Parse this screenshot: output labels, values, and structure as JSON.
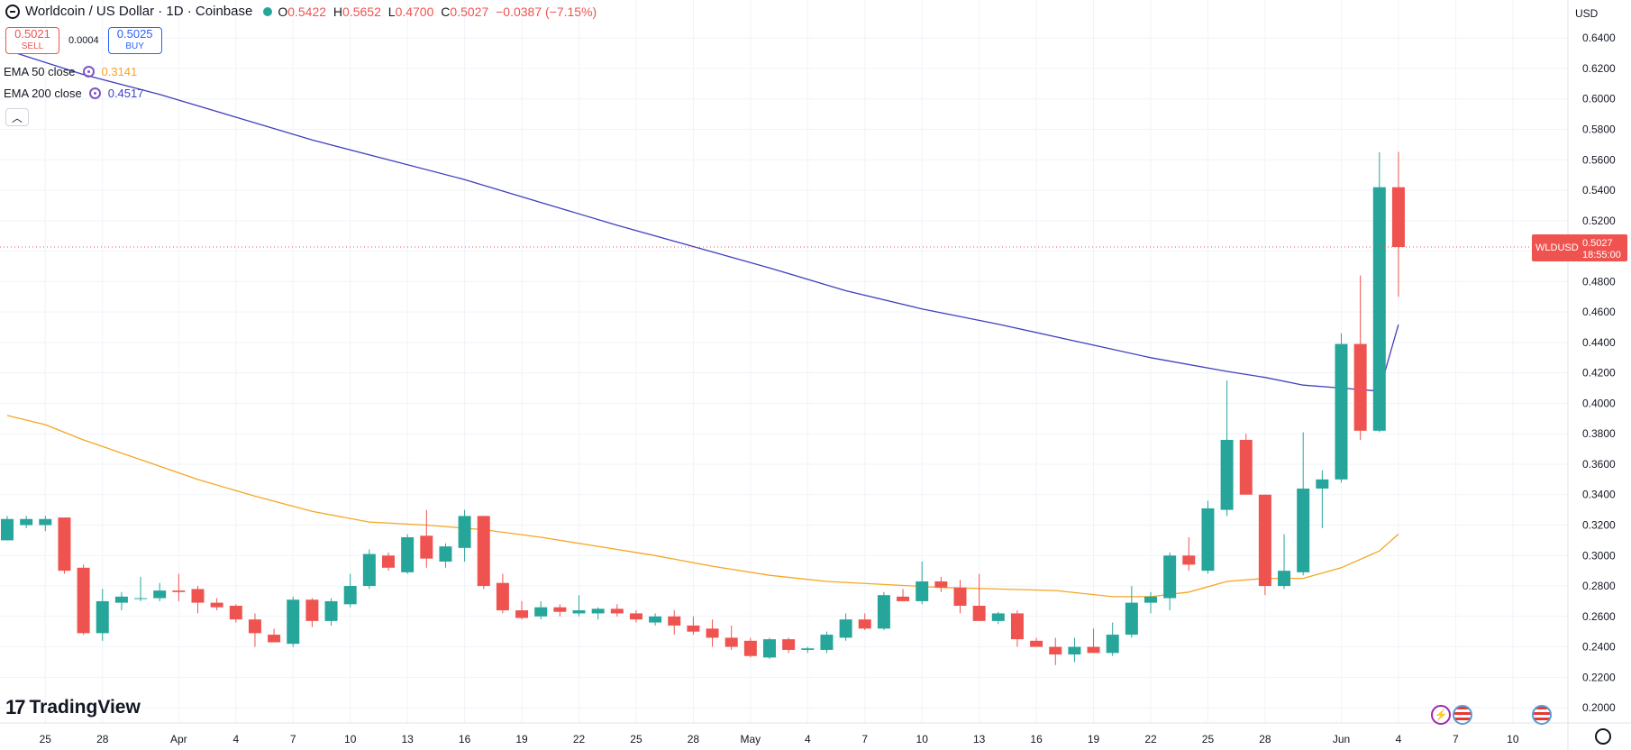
{
  "header": {
    "title": "Worldcoin / US Dollar · 1D · Coinbase",
    "ohlc": [
      {
        "k": "O",
        "v": "0.5422"
      },
      {
        "k": "H",
        "v": "0.5652"
      },
      {
        "k": "L",
        "v": "0.4700"
      },
      {
        "k": "C",
        "v": "0.5027"
      },
      {
        "k": "",
        "v": "−0.0387 (−7.15%)"
      }
    ]
  },
  "trade": {
    "sell_price": "0.5021",
    "sell_label": "SELL",
    "spread": "0.0004",
    "buy_price": "0.5025",
    "buy_label": "BUY"
  },
  "indicators": [
    {
      "label": "EMA 50 close",
      "value": "0.3141",
      "color": "#f5a623"
    },
    {
      "label": "EMA 200 close",
      "value": "0.4517",
      "color": "#3f3fbf"
    }
  ],
  "currency_label": "USD",
  "branding": "TradingView",
  "price_tag": {
    "symbol": "WLDUSD",
    "price": "0.5027",
    "countdown": "18:55:00",
    "value": 0.5027
  },
  "colors": {
    "up": "#26a69a",
    "down": "#ef5350",
    "ema50": "#f5a623",
    "ema200": "#3f3fbf",
    "grid": "#f0f3fa"
  },
  "chart_data": {
    "type": "candlestick",
    "title": "Worldcoin / US Dollar · 1D · Coinbase",
    "ylim": [
      0.19,
      0.665
    ],
    "y_ticks": [
      "0.2000",
      "0.2200",
      "0.2400",
      "0.2600",
      "0.2800",
      "0.3000",
      "0.3200",
      "0.3400",
      "0.3600",
      "0.3800",
      "0.4000",
      "0.4200",
      "0.4400",
      "0.4600",
      "0.4800",
      "0.5000",
      "0.5200",
      "0.5400",
      "0.5600",
      "0.5800",
      "0.6000",
      "0.6200",
      "0.6400"
    ],
    "x_ticks": [
      {
        "label": "25",
        "i": 2
      },
      {
        "label": "28",
        "i": 5
      },
      {
        "label": "Apr",
        "i": 9
      },
      {
        "label": "4",
        "i": 12
      },
      {
        "label": "7",
        "i": 15
      },
      {
        "label": "10",
        "i": 18
      },
      {
        "label": "13",
        "i": 21
      },
      {
        "label": "16",
        "i": 24
      },
      {
        "label": "19",
        "i": 27
      },
      {
        "label": "22",
        "i": 30
      },
      {
        "label": "25",
        "i": 33
      },
      {
        "label": "28",
        "i": 36
      },
      {
        "label": "May",
        "i": 39
      },
      {
        "label": "4",
        "i": 42
      },
      {
        "label": "7",
        "i": 45
      },
      {
        "label": "10",
        "i": 48
      },
      {
        "label": "13",
        "i": 51
      },
      {
        "label": "16",
        "i": 54
      },
      {
        "label": "19",
        "i": 57
      },
      {
        "label": "22",
        "i": 60
      },
      {
        "label": "25",
        "i": 63
      },
      {
        "label": "28",
        "i": 66
      },
      {
        "label": "Jun",
        "i": 70
      },
      {
        "label": "4",
        "i": 73
      },
      {
        "label": "7",
        "i": 76
      },
      {
        "label": "10",
        "i": 79
      }
    ],
    "candles": [
      [
        0.31,
        0.326,
        0.31,
        0.324
      ],
      [
        0.32,
        0.326,
        0.318,
        0.324
      ],
      [
        0.32,
        0.326,
        0.316,
        0.324
      ],
      [
        0.325,
        0.325,
        0.288,
        0.29
      ],
      [
        0.292,
        0.294,
        0.248,
        0.249
      ],
      [
        0.249,
        0.278,
        0.244,
        0.27
      ],
      [
        0.269,
        0.276,
        0.264,
        0.273
      ],
      [
        0.272,
        0.286,
        0.27,
        0.272
      ],
      [
        0.272,
        0.282,
        0.27,
        0.277
      ],
      [
        0.277,
        0.288,
        0.27,
        0.276
      ],
      [
        0.278,
        0.28,
        0.262,
        0.269
      ],
      [
        0.269,
        0.272,
        0.264,
        0.266
      ],
      [
        0.267,
        0.268,
        0.256,
        0.258
      ],
      [
        0.258,
        0.262,
        0.24,
        0.249
      ],
      [
        0.248,
        0.252,
        0.243,
        0.243
      ],
      [
        0.242,
        0.273,
        0.24,
        0.271
      ],
      [
        0.271,
        0.272,
        0.253,
        0.257
      ],
      [
        0.257,
        0.272,
        0.254,
        0.27
      ],
      [
        0.268,
        0.288,
        0.266,
        0.28
      ],
      [
        0.28,
        0.304,
        0.278,
        0.301
      ],
      [
        0.3,
        0.302,
        0.29,
        0.292
      ],
      [
        0.289,
        0.314,
        0.288,
        0.312
      ],
      [
        0.313,
        0.33,
        0.292,
        0.298
      ],
      [
        0.296,
        0.308,
        0.292,
        0.306
      ],
      [
        0.305,
        0.33,
        0.296,
        0.326
      ],
      [
        0.326,
        0.326,
        0.278,
        0.28
      ],
      [
        0.282,
        0.288,
        0.262,
        0.264
      ],
      [
        0.264,
        0.27,
        0.258,
        0.259
      ],
      [
        0.26,
        0.27,
        0.258,
        0.266
      ],
      [
        0.266,
        0.268,
        0.26,
        0.263
      ],
      [
        0.262,
        0.274,
        0.26,
        0.264
      ],
      [
        0.262,
        0.266,
        0.258,
        0.265
      ],
      [
        0.265,
        0.268,
        0.26,
        0.262
      ],
      [
        0.262,
        0.264,
        0.256,
        0.258
      ],
      [
        0.256,
        0.262,
        0.254,
        0.26
      ],
      [
        0.26,
        0.264,
        0.248,
        0.254
      ],
      [
        0.254,
        0.26,
        0.248,
        0.25
      ],
      [
        0.252,
        0.258,
        0.24,
        0.246
      ],
      [
        0.246,
        0.254,
        0.238,
        0.24
      ],
      [
        0.244,
        0.246,
        0.233,
        0.234
      ],
      [
        0.233,
        0.246,
        0.232,
        0.245
      ],
      [
        0.245,
        0.246,
        0.236,
        0.238
      ],
      [
        0.238,
        0.24,
        0.236,
        0.239
      ],
      [
        0.238,
        0.25,
        0.236,
        0.248
      ],
      [
        0.246,
        0.262,
        0.244,
        0.258
      ],
      [
        0.258,
        0.262,
        0.251,
        0.252
      ],
      [
        0.252,
        0.276,
        0.251,
        0.274
      ],
      [
        0.273,
        0.278,
        0.27,
        0.27
      ],
      [
        0.27,
        0.296,
        0.268,
        0.283
      ],
      [
        0.283,
        0.286,
        0.276,
        0.279
      ],
      [
        0.279,
        0.284,
        0.262,
        0.267
      ],
      [
        0.267,
        0.288,
        0.258,
        0.257
      ],
      [
        0.257,
        0.263,
        0.255,
        0.262
      ],
      [
        0.262,
        0.264,
        0.24,
        0.245
      ],
      [
        0.244,
        0.246,
        0.24,
        0.24
      ],
      [
        0.24,
        0.246,
        0.228,
        0.235
      ],
      [
        0.235,
        0.246,
        0.23,
        0.24
      ],
      [
        0.24,
        0.252,
        0.236,
        0.236
      ],
      [
        0.236,
        0.256,
        0.234,
        0.248
      ],
      [
        0.248,
        0.28,
        0.246,
        0.269
      ],
      [
        0.269,
        0.276,
        0.262,
        0.273
      ],
      [
        0.272,
        0.302,
        0.264,
        0.3
      ],
      [
        0.3,
        0.312,
        0.29,
        0.294
      ],
      [
        0.29,
        0.336,
        0.288,
        0.331
      ],
      [
        0.33,
        0.415,
        0.326,
        0.376
      ],
      [
        0.376,
        0.38,
        0.34,
        0.34
      ],
      [
        0.34,
        0.34,
        0.274,
        0.28
      ],
      [
        0.28,
        0.314,
        0.278,
        0.29
      ],
      [
        0.289,
        0.381,
        0.287,
        0.344
      ],
      [
        0.344,
        0.356,
        0.318,
        0.35
      ],
      [
        0.35,
        0.446,
        0.348,
        0.439
      ],
      [
        0.439,
        0.484,
        0.376,
        0.382
      ],
      [
        0.382,
        0.565,
        0.381,
        0.542
      ],
      [
        0.542,
        0.5652,
        0.47,
        0.5027
      ]
    ],
    "ema50": [
      [
        0,
        0.392
      ],
      [
        2,
        0.386
      ],
      [
        4,
        0.376
      ],
      [
        7,
        0.363
      ],
      [
        10,
        0.35
      ],
      [
        13,
        0.339
      ],
      [
        16,
        0.329
      ],
      [
        19,
        0.322
      ],
      [
        22,
        0.32
      ],
      [
        25,
        0.317
      ],
      [
        28,
        0.312
      ],
      [
        31,
        0.306
      ],
      [
        34,
        0.3
      ],
      [
        37,
        0.293
      ],
      [
        40,
        0.287
      ],
      [
        43,
        0.283
      ],
      [
        46,
        0.281
      ],
      [
        49,
        0.279
      ],
      [
        52,
        0.278
      ],
      [
        55,
        0.277
      ],
      [
        58,
        0.273
      ],
      [
        60,
        0.273
      ],
      [
        62,
        0.276
      ],
      [
        64,
        0.283
      ],
      [
        66,
        0.285
      ],
      [
        68,
        0.285
      ],
      [
        70,
        0.292
      ],
      [
        72,
        0.303
      ],
      [
        73,
        0.3141
      ]
    ],
    "ema200": [
      [
        0,
        0.632
      ],
      [
        4,
        0.616
      ],
      [
        8,
        0.603
      ],
      [
        12,
        0.588
      ],
      [
        16,
        0.573
      ],
      [
        20,
        0.56
      ],
      [
        24,
        0.547
      ],
      [
        28,
        0.532
      ],
      [
        32,
        0.517
      ],
      [
        36,
        0.503
      ],
      [
        40,
        0.489
      ],
      [
        44,
        0.474
      ],
      [
        48,
        0.462
      ],
      [
        52,
        0.452
      ],
      [
        56,
        0.441
      ],
      [
        60,
        0.43
      ],
      [
        64,
        0.421
      ],
      [
        66,
        0.417
      ],
      [
        68,
        0.412
      ],
      [
        70,
        0.41
      ],
      [
        72,
        0.408
      ],
      [
        73,
        0.4517
      ]
    ]
  }
}
